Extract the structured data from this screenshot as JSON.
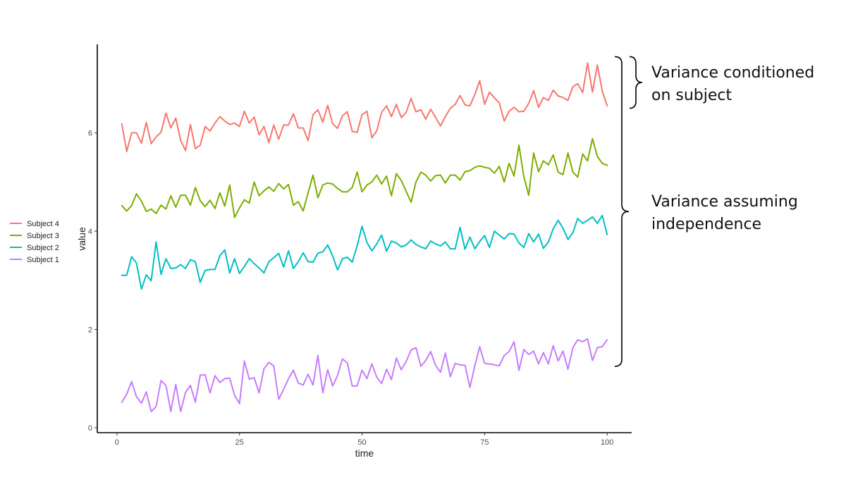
{
  "chart_data": {
    "type": "line",
    "title": "",
    "xlabel": "time",
    "ylabel": "value",
    "xlim": [
      -4,
      105
    ],
    "ylim": [
      -0.1,
      7.8
    ],
    "x_ticks": [
      0,
      25,
      50,
      75,
      100
    ],
    "y_ticks": [
      0,
      2,
      4,
      6
    ],
    "grid": false,
    "legend_position": "left",
    "legend_order": [
      "Subject 4",
      "Subject 3",
      "Subject 2",
      "Subject 1"
    ],
    "series": [
      {
        "name": "Subject 4",
        "color": "#f8766d",
        "x_start": 1,
        "x_step": 1,
        "values": [
          6.18,
          5.62,
          6.0,
          6.0,
          5.79,
          6.21,
          5.78,
          5.92,
          6.01,
          6.4,
          6.1,
          6.3,
          5.85,
          5.64,
          6.17,
          5.68,
          5.75,
          6.13,
          6.04,
          6.2,
          6.33,
          6.24,
          6.17,
          6.2,
          6.13,
          6.44,
          6.2,
          6.32,
          5.96,
          6.13,
          5.8,
          6.16,
          5.87,
          6.16,
          6.16,
          6.39,
          6.1,
          6.1,
          5.84,
          6.37,
          6.47,
          6.22,
          6.56,
          6.19,
          6.09,
          6.35,
          6.43,
          6.03,
          6.01,
          6.37,
          6.44,
          5.9,
          6.04,
          6.42,
          6.55,
          6.33,
          6.58,
          6.31,
          6.42,
          6.7,
          6.43,
          6.47,
          6.28,
          6.48,
          6.32,
          6.14,
          6.33,
          6.5,
          6.58,
          6.76,
          6.57,
          6.55,
          6.78,
          7.06,
          6.58,
          6.83,
          6.71,
          6.61,
          6.24,
          6.44,
          6.52,
          6.43,
          6.44,
          6.6,
          6.86,
          6.52,
          6.72,
          6.66,
          6.87,
          6.75,
          6.72,
          6.66,
          6.94,
          7.0,
          6.82,
          7.42,
          6.83,
          7.38,
          6.85,
          6.55
        ]
      },
      {
        "name": "Subject 3",
        "color": "#7cae00",
        "x_start": 1,
        "x_step": 1,
        "values": [
          4.52,
          4.41,
          4.52,
          4.76,
          4.61,
          4.4,
          4.45,
          4.36,
          4.53,
          4.45,
          4.72,
          4.49,
          4.73,
          4.73,
          4.53,
          4.89,
          4.62,
          4.5,
          4.63,
          4.46,
          4.78,
          4.51,
          4.94,
          4.28,
          4.47,
          4.64,
          4.57,
          5.0,
          4.72,
          4.82,
          4.9,
          4.81,
          4.97,
          4.86,
          4.95,
          4.53,
          4.6,
          4.41,
          4.78,
          5.14,
          4.68,
          4.94,
          4.98,
          4.96,
          4.87,
          4.8,
          4.8,
          4.89,
          5.2,
          4.8,
          4.94,
          5.0,
          5.14,
          4.96,
          5.12,
          4.72,
          5.17,
          5.03,
          4.81,
          4.59,
          5.0,
          5.2,
          5.14,
          5.02,
          5.13,
          5.14,
          4.98,
          5.14,
          5.14,
          5.04,
          5.21,
          5.23,
          5.3,
          5.33,
          5.3,
          5.28,
          5.18,
          5.32,
          5.0,
          5.38,
          5.12,
          5.75,
          5.11,
          4.73,
          5.59,
          5.21,
          5.43,
          5.35,
          5.55,
          5.2,
          5.15,
          5.59,
          5.2,
          5.1,
          5.57,
          5.43,
          5.88,
          5.52,
          5.38,
          5.34
        ]
      },
      {
        "name": "Subject 2",
        "color": "#00bfc4",
        "x_start": 1,
        "x_step": 1,
        "values": [
          3.1,
          3.1,
          3.48,
          3.35,
          2.82,
          3.11,
          2.99,
          3.78,
          3.12,
          3.44,
          3.24,
          3.25,
          3.32,
          3.24,
          3.42,
          3.38,
          2.96,
          3.2,
          3.22,
          3.22,
          3.5,
          3.62,
          3.15,
          3.44,
          3.14,
          3.28,
          3.44,
          3.34,
          3.25,
          3.15,
          3.38,
          3.46,
          3.55,
          3.27,
          3.6,
          3.24,
          3.38,
          3.56,
          3.38,
          3.37,
          3.55,
          3.58,
          3.72,
          3.5,
          3.21,
          3.44,
          3.47,
          3.37,
          3.7,
          4.1,
          3.77,
          3.6,
          3.74,
          3.92,
          3.59,
          3.8,
          3.76,
          3.68,
          3.72,
          3.82,
          3.73,
          3.68,
          3.64,
          3.8,
          3.74,
          3.7,
          3.78,
          3.64,
          3.64,
          4.08,
          3.63,
          3.88,
          3.64,
          3.79,
          3.91,
          3.67,
          4.0,
          3.92,
          3.84,
          3.95,
          3.94,
          3.76,
          3.67,
          3.95,
          3.78,
          3.94,
          3.65,
          3.78,
          4.05,
          4.22,
          4.06,
          3.83,
          3.97,
          4.26,
          4.16,
          4.22,
          4.29,
          4.16,
          4.32,
          3.93
        ]
      },
      {
        "name": "Subject 1",
        "color": "#c77cff",
        "x_start": 1,
        "x_step": 1,
        "values": [
          0.52,
          0.68,
          0.94,
          0.63,
          0.5,
          0.73,
          0.33,
          0.43,
          0.96,
          0.86,
          0.33,
          0.88,
          0.33,
          0.72,
          0.86,
          0.52,
          1.07,
          1.08,
          0.71,
          1.06,
          0.92,
          1.0,
          1.01,
          0.66,
          0.49,
          1.36,
          0.99,
          1.02,
          0.71,
          1.2,
          1.33,
          1.26,
          0.58,
          0.78,
          1.0,
          1.17,
          0.91,
          0.87,
          1.09,
          0.87,
          1.47,
          0.71,
          1.18,
          0.85,
          1.06,
          1.4,
          1.32,
          0.85,
          0.85,
          1.17,
          1.0,
          1.3,
          1.03,
          0.9,
          1.19,
          0.98,
          1.42,
          1.18,
          1.35,
          1.58,
          1.63,
          1.25,
          1.37,
          1.55,
          1.27,
          1.13,
          1.52,
          1.04,
          1.31,
          1.28,
          1.27,
          0.82,
          1.26,
          1.65,
          1.31,
          1.3,
          1.28,
          1.26,
          1.47,
          1.55,
          1.75,
          1.17,
          1.59,
          1.49,
          1.56,
          1.3,
          1.53,
          1.3,
          1.67,
          1.36,
          1.56,
          1.19,
          1.63,
          1.79,
          1.75,
          1.81,
          1.37,
          1.63,
          1.65,
          1.79
        ]
      }
    ],
    "annotations": [
      {
        "text_lines": [
          "Variance conditioned",
          "on subject"
        ],
        "y_range": [
          6.5,
          7.55
        ]
      },
      {
        "text_lines": [
          "Variance assuming",
          "independence"
        ],
        "y_range": [
          1.25,
          7.55
        ]
      }
    ]
  }
}
